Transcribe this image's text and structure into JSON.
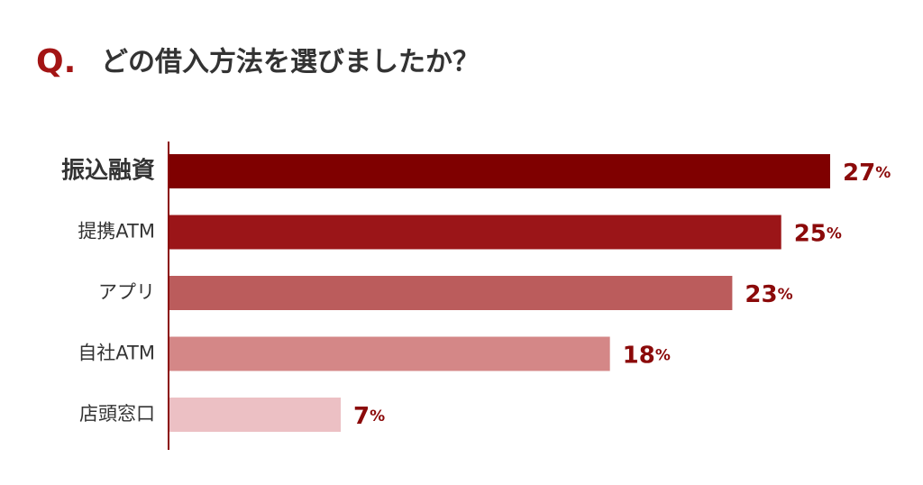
{
  "chart_data": {
    "type": "bar",
    "orientation": "horizontal",
    "title_prefix": "Q.",
    "title": "どの借入方法を選びましたか？",
    "categories": [
      "振込融資",
      "提携ATM",
      "アプリ",
      "自社ATM",
      "店頭窓口"
    ],
    "values": [
      27,
      25,
      23,
      18,
      7
    ],
    "value_labels": [
      "27%",
      "25%",
      "23%",
      "18%",
      "7%"
    ],
    "colors": [
      "#7f0000",
      "#9b1518",
      "#bb5c5c",
      "#d48787",
      "#ecc0c4"
    ]
  }
}
